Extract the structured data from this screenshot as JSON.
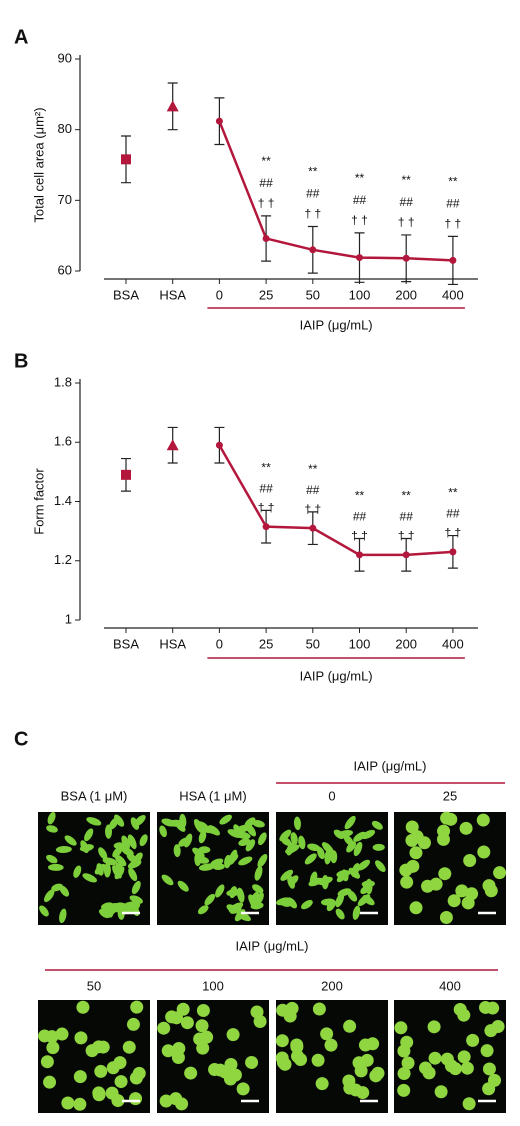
{
  "chart_data": [
    {
      "type": "line",
      "panel": "A",
      "ylabel": "Total cell area (μm²)",
      "group_label": "IAIP (μg/mL)",
      "categories": [
        "BSA",
        "HSA",
        "0",
        "25",
        "50",
        "100",
        "200",
        "400"
      ],
      "ylim": [
        60,
        90
      ],
      "yticks": [
        60,
        70,
        80,
        90
      ],
      "color": "#b3173c",
      "series": [
        {
          "marker": "square",
          "values": [
            75.8,
            null,
            null,
            null,
            null,
            null,
            null,
            null
          ],
          "errors": [
            3.3,
            null,
            null,
            null,
            null,
            null,
            null,
            null
          ]
        },
        {
          "marker": "triangle",
          "values": [
            null,
            83.3,
            null,
            null,
            null,
            null,
            null,
            null
          ],
          "errors": [
            null,
            3.3,
            null,
            null,
            null,
            null,
            null,
            null
          ]
        },
        {
          "marker": "circle",
          "values": [
            null,
            null,
            81.2,
            64.6,
            63.0,
            61.9,
            61.8,
            61.5
          ],
          "errors": [
            null,
            null,
            3.3,
            3.2,
            3.3,
            3.5,
            3.3,
            3.4
          ]
        }
      ],
      "annotations": [
        null,
        null,
        null,
        [
          "**",
          "##",
          "† †"
        ],
        [
          "**",
          "##",
          "† †"
        ],
        [
          "**",
          "##",
          "† †"
        ],
        [
          "**",
          "##",
          "† †"
        ],
        [
          "**",
          "##",
          "† †"
        ]
      ]
    },
    {
      "type": "line",
      "panel": "B",
      "ylabel": "Form factor",
      "group_label": "IAIP (μg/mL)",
      "categories": [
        "BSA",
        "HSA",
        "0",
        "25",
        "50",
        "100",
        "200",
        "400"
      ],
      "ylim": [
        1,
        1.8
      ],
      "yticks": [
        1,
        1.2,
        1.4,
        1.6,
        1.8
      ],
      "color": "#b3173c",
      "series": [
        {
          "marker": "square",
          "values": [
            1.49,
            null,
            null,
            null,
            null,
            null,
            null,
            null
          ],
          "errors": [
            0.055,
            null,
            null,
            null,
            null,
            null,
            null,
            null
          ]
        },
        {
          "marker": "triangle",
          "values": [
            null,
            1.59,
            null,
            null,
            null,
            null,
            null,
            null
          ],
          "errors": [
            null,
            0.06,
            null,
            null,
            null,
            null,
            null,
            null
          ]
        },
        {
          "marker": "circle",
          "values": [
            null,
            null,
            1.59,
            1.315,
            1.31,
            1.22,
            1.22,
            1.23
          ],
          "errors": [
            null,
            null,
            0.06,
            0.055,
            0.055,
            0.055,
            0.055,
            0.055
          ]
        }
      ],
      "annotations": [
        null,
        null,
        null,
        [
          "**",
          "##",
          "† †"
        ],
        [
          "**",
          "##",
          "† †"
        ],
        [
          "**",
          "##",
          "† †"
        ],
        [
          "**",
          "##",
          "† †"
        ],
        [
          "**",
          "##",
          "† †"
        ]
      ]
    }
  ],
  "panel_c": {
    "label": "C",
    "group_label_top": "IAIP (μg/mL)",
    "group_label_bottom": "IAIP (μg/mL)",
    "row1": [
      "BSA (1 μM)",
      "HSA (1 μM)",
      "0",
      "25"
    ],
    "row2": [
      "50",
      "100",
      "200",
      "400"
    ]
  }
}
